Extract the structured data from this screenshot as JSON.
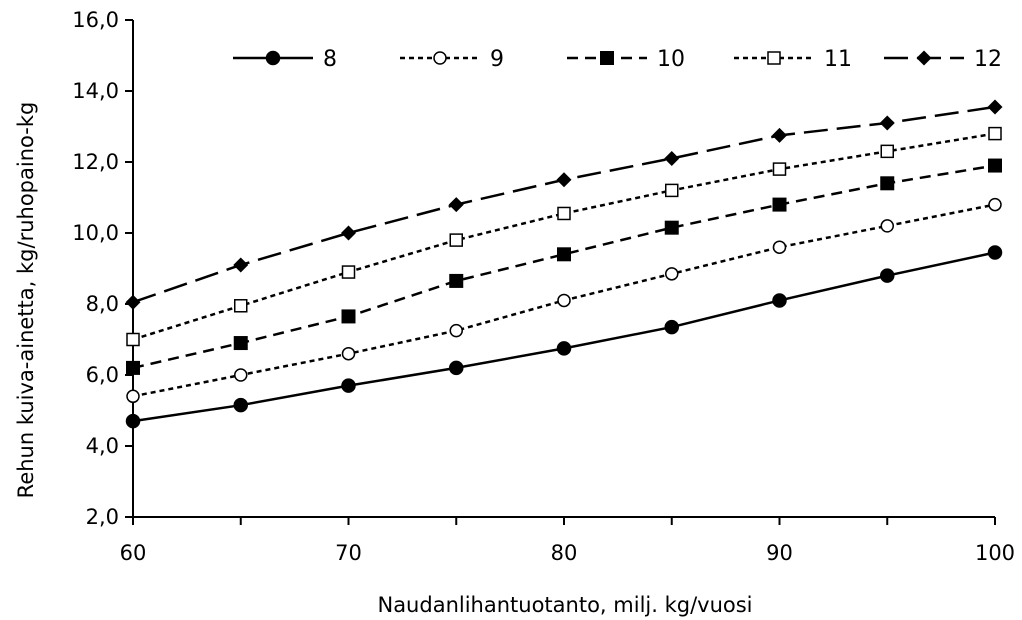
{
  "chart_data": {
    "type": "line",
    "title": "",
    "xlabel": "Naudanlihantuotanto, milj. kg/vuosi",
    "ylabel": "Rehun kuiva-ainetta, kg/ruhopaino-kg",
    "xlim": [
      60,
      100
    ],
    "ylim": [
      2,
      16
    ],
    "x_ticks": [
      "60",
      "70",
      "80",
      "90",
      "100"
    ],
    "y_ticks": [
      "2,0",
      "4,0",
      "6,0",
      "8,0",
      "10,0",
      "12,0",
      "14,0",
      "16,0"
    ],
    "grid": false,
    "legend_position": "top",
    "x": [
      60,
      65,
      70,
      75,
      80,
      85,
      90,
      95,
      100
    ],
    "series": [
      {
        "name": "8",
        "line": "solid",
        "marker": "filled-circle",
        "values": [
          4.7,
          5.15,
          5.7,
          6.2,
          6.75,
          7.35,
          8.1,
          8.8,
          9.45
        ]
      },
      {
        "name": "9",
        "line": "dotted",
        "marker": "open-circle",
        "values": [
          5.4,
          6.0,
          6.6,
          7.25,
          8.1,
          8.85,
          9.6,
          10.2,
          10.8
        ]
      },
      {
        "name": "10",
        "line": "dashed",
        "marker": "filled-square",
        "values": [
          6.2,
          6.9,
          7.65,
          8.65,
          9.4,
          10.15,
          10.8,
          11.4,
          11.9
        ]
      },
      {
        "name": "11",
        "line": "dotted",
        "marker": "open-square",
        "values": [
          7.0,
          7.95,
          8.9,
          9.8,
          10.55,
          11.2,
          11.8,
          12.3,
          12.8
        ]
      },
      {
        "name": "12",
        "line": "long-dash",
        "marker": "filled-diamond",
        "values": [
          8.05,
          9.1,
          10.0,
          10.8,
          11.5,
          12.1,
          12.75,
          13.1,
          13.55
        ]
      }
    ]
  }
}
